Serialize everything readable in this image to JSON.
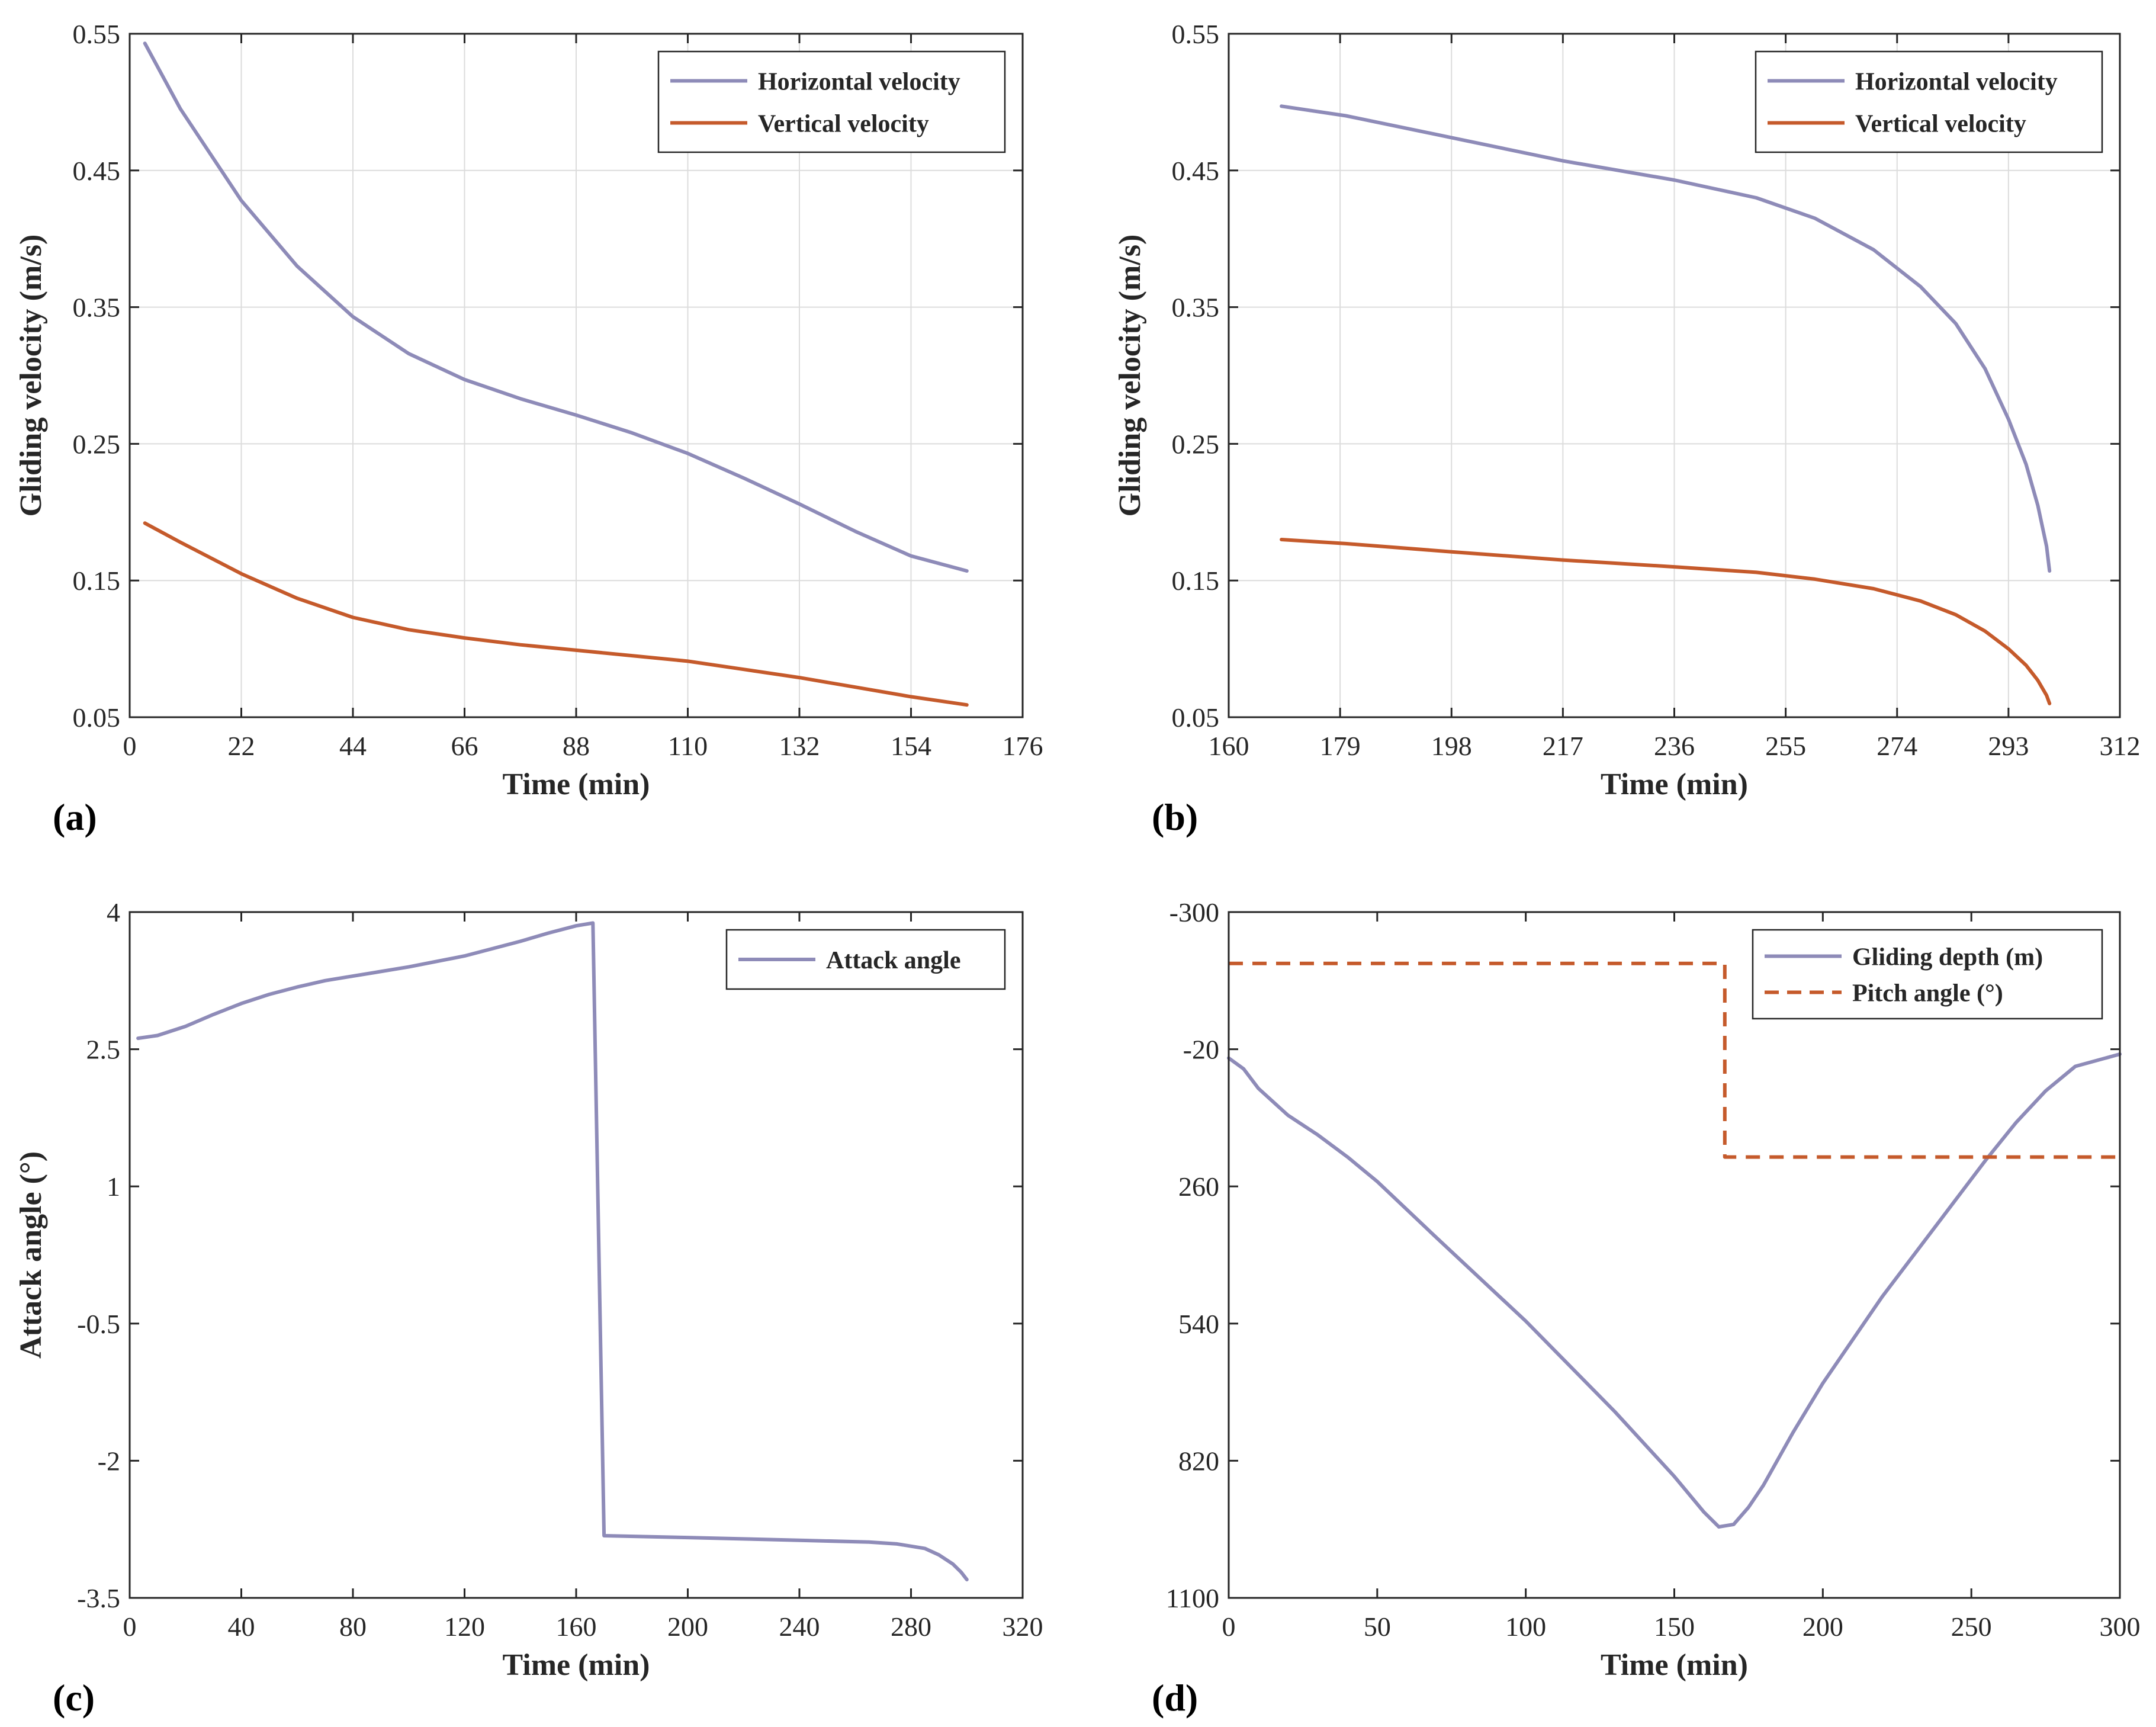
{
  "colors": {
    "horizontal": "#8e8bb8",
    "vertical": "#c55a2b",
    "attack": "#8e8bb8",
    "depth": "#8e8bb8",
    "pitch": "#c55a2b"
  },
  "chart_data": [
    {
      "id": "a",
      "panel_label": "(a)",
      "type": "line",
      "xlabel": "Time (min)",
      "ylabel": "Gliding velocity (m/s)",
      "xlim": [
        0,
        176
      ],
      "ylim": [
        0.05,
        0.55
      ],
      "xticks": [
        0,
        22,
        44,
        66,
        88,
        110,
        132,
        154,
        176
      ],
      "yticks": [
        0.05,
        0.15,
        0.25,
        0.35,
        0.45,
        0.55
      ],
      "ytick_labels": [
        "0.05",
        "0.15",
        "0.25",
        "0.35",
        "0.45",
        "0.55"
      ],
      "grid": true,
      "legend_position": "top-right",
      "series": [
        {
          "name": "Horizontal velocity",
          "color": "#8e8bb8",
          "dash": false,
          "x": [
            3,
            10,
            22,
            33,
            44,
            55,
            66,
            77,
            88,
            99,
            110,
            121,
            132,
            143,
            154,
            165
          ],
          "y": [
            0.543,
            0.495,
            0.428,
            0.38,
            0.343,
            0.316,
            0.297,
            0.283,
            0.271,
            0.258,
            0.243,
            0.225,
            0.206,
            0.186,
            0.168,
            0.157
          ]
        },
        {
          "name": "Vertical velocity",
          "color": "#c55a2b",
          "dash": false,
          "x": [
            3,
            10,
            22,
            33,
            44,
            55,
            66,
            77,
            88,
            99,
            110,
            121,
            132,
            143,
            154,
            165
          ],
          "y": [
            0.192,
            0.178,
            0.155,
            0.137,
            0.123,
            0.114,
            0.108,
            0.103,
            0.099,
            0.095,
            0.091,
            0.085,
            0.079,
            0.072,
            0.065,
            0.059
          ]
        }
      ]
    },
    {
      "id": "b",
      "panel_label": "(b)",
      "type": "line",
      "xlabel": "Time (min)",
      "ylabel": "Gliding velocity (m/s)",
      "xlim": [
        160,
        312
      ],
      "ylim": [
        0.05,
        0.55
      ],
      "xticks": [
        160,
        179,
        198,
        217,
        236,
        255,
        274,
        293,
        312
      ],
      "yticks": [
        0.05,
        0.15,
        0.25,
        0.35,
        0.45,
        0.55
      ],
      "ytick_labels": [
        "0.05",
        "0.15",
        "0.25",
        "0.35",
        "0.45",
        "0.55"
      ],
      "grid": true,
      "legend_position": "top-right",
      "series": [
        {
          "name": "Horizontal velocity",
          "color": "#8e8bb8",
          "dash": false,
          "x": [
            169,
            180,
            198,
            217,
            236,
            250,
            260,
            270,
            278,
            284,
            289,
            293,
            296,
            298,
            299.5,
            300
          ],
          "y": [
            0.497,
            0.49,
            0.474,
            0.457,
            0.443,
            0.43,
            0.415,
            0.392,
            0.365,
            0.338,
            0.305,
            0.268,
            0.235,
            0.205,
            0.175,
            0.157
          ]
        },
        {
          "name": "Vertical velocity",
          "color": "#c55a2b",
          "dash": false,
          "x": [
            169,
            180,
            198,
            217,
            236,
            250,
            260,
            270,
            278,
            284,
            289,
            293,
            296,
            298,
            299.5,
            300
          ],
          "y": [
            0.18,
            0.177,
            0.171,
            0.165,
            0.16,
            0.156,
            0.151,
            0.144,
            0.135,
            0.125,
            0.113,
            0.1,
            0.088,
            0.077,
            0.066,
            0.06
          ]
        }
      ]
    },
    {
      "id": "c",
      "panel_label": "(c)",
      "type": "line",
      "xlabel": "Time (min)",
      "ylabel": "Attack angle (°)",
      "xlim": [
        0,
        320
      ],
      "ylim": [
        -3.5,
        4
      ],
      "xticks": [
        0,
        40,
        80,
        120,
        160,
        200,
        240,
        280,
        320
      ],
      "yticks": [
        -3.5,
        -2,
        -0.5,
        1,
        2.5,
        4
      ],
      "ytick_labels": [
        "-3.5",
        "-2",
        "-0.5",
        "1",
        "2.5",
        "4"
      ],
      "grid": false,
      "legend_position": "top-right",
      "series": [
        {
          "name": "Attack angle",
          "color": "#8e8bb8",
          "dash": false,
          "x": [
            3,
            10,
            20,
            30,
            40,
            50,
            60,
            70,
            80,
            100,
            120,
            140,
            150,
            160,
            166,
            170,
            200,
            240,
            265,
            275,
            285,
            290,
            295,
            298,
            300
          ],
          "y": [
            2.62,
            2.65,
            2.75,
            2.88,
            3.0,
            3.1,
            3.18,
            3.25,
            3.3,
            3.4,
            3.52,
            3.68,
            3.77,
            3.85,
            3.88,
            -2.82,
            -2.84,
            -2.87,
            -2.89,
            -2.91,
            -2.96,
            -3.03,
            -3.13,
            -3.22,
            -3.3
          ]
        }
      ]
    },
    {
      "id": "d",
      "panel_label": "(d)",
      "type": "line",
      "xlabel": "Time (min)",
      "ylabel": "",
      "xlim": [
        0,
        300
      ],
      "ylim": [
        -300,
        1100
      ],
      "y_inverted": true,
      "xticks": [
        0,
        50,
        100,
        150,
        200,
        250,
        300
      ],
      "yticks": [
        -300,
        -20,
        260,
        540,
        820,
        1100
      ],
      "ytick_labels": [
        "-300",
        "-20",
        "260",
        "540",
        "820",
        "1100"
      ],
      "grid": false,
      "legend_position": "top-right",
      "series": [
        {
          "name": "Gliding depth (m)",
          "color": "#8e8bb8",
          "dash": false,
          "x": [
            0,
            5,
            10,
            20,
            30,
            40,
            50,
            70,
            100,
            130,
            150,
            160,
            165,
            170,
            175,
            180,
            190,
            200,
            220,
            240,
            255,
            265,
            275,
            285,
            300
          ],
          "y": [
            -2,
            20,
            60,
            115,
            155,
            200,
            250,
            365,
            535,
            720,
            852,
            925,
            955,
            950,
            915,
            870,
            762,
            662,
            485,
            325,
            205,
            130,
            65,
            15,
            -10
          ]
        },
        {
          "name": "Pitch angle (°)",
          "color": "#c55a2b",
          "dash": true,
          "x": [
            0,
            167,
            167,
            300
          ],
          "y": [
            -195,
            -195,
            200,
            200
          ]
        }
      ]
    }
  ]
}
